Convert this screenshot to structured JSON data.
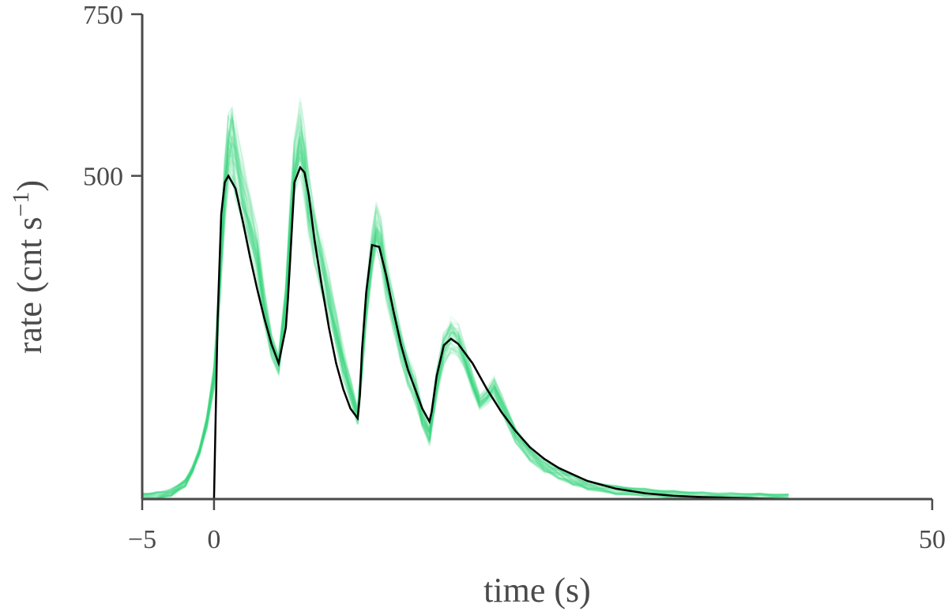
{
  "chart_data": {
    "type": "line",
    "xlabel": "time (s)",
    "ylabel_main": "rate (cnt s",
    "ylabel_sup": "−1",
    "ylabel_close": ")",
    "xlim": [
      -5,
      50
    ],
    "ylim": [
      0,
      750
    ],
    "xticks": [
      {
        "value": -5,
        "label": "−5"
      },
      {
        "value": 0,
        "label": "0"
      },
      {
        "value": 50,
        "label": "50"
      }
    ],
    "yticks": [
      {
        "value": 500,
        "label": "500"
      },
      {
        "value": 750,
        "label": "750"
      }
    ],
    "grid": false,
    "colors": {
      "band": "#3ddc84",
      "model": "#000000",
      "axis": "#4a4a4a"
    },
    "series": [
      {
        "role": "model",
        "x": [
          0,
          0.25,
          0.5,
          0.75,
          1.0,
          1.5,
          2.0,
          2.5,
          3.0,
          3.5,
          4.0,
          4.5,
          5.0,
          5.15,
          5.3,
          5.6,
          6.0,
          6.3,
          6.6,
          7.0,
          7.5,
          8.0,
          8.5,
          9.0,
          9.5,
          10.0,
          10.15,
          10.3,
          10.6,
          11.0,
          11.5,
          12.0,
          12.5,
          13.0,
          13.5,
          14.0,
          14.5,
          15.0,
          15.15,
          15.5,
          16.0,
          16.5,
          17.0,
          18.0,
          19.0,
          20.0,
          21.0,
          22.0,
          23.0,
          24.0,
          26.0,
          28.0,
          30.0,
          32.0,
          34.0,
          36.0,
          38.0,
          40.0
        ],
        "y": [
          0,
          280,
          440,
          490,
          500,
          480,
          430,
          375,
          325,
          280,
          240,
          210,
          265,
          310,
          370,
          490,
          513,
          505,
          470,
          400,
          330,
          265,
          210,
          170,
          140,
          125,
          160,
          230,
          320,
          393,
          390,
          345,
          290,
          240,
          200,
          170,
          140,
          120,
          135,
          190,
          238,
          248,
          240,
          210,
          170,
          135,
          105,
          80,
          62,
          48,
          28,
          16,
          9,
          5,
          3,
          2,
          1,
          0
        ]
      },
      {
        "role": "posterior-samples",
        "x": [
          -5,
          -4,
          -3,
          -2,
          -1.5,
          -1,
          -0.5,
          0,
          0.25,
          0.5,
          0.75,
          1.0,
          1.25,
          1.5,
          2.0,
          2.5,
          3.0,
          3.5,
          4.0,
          4.5,
          5.0,
          5.3,
          5.6,
          6.0,
          6.3,
          6.6,
          7.0,
          7.5,
          8.0,
          8.5,
          9.0,
          9.5,
          10.0,
          10.3,
          10.6,
          11.0,
          11.3,
          11.6,
          12.0,
          12.5,
          13.0,
          13.5,
          14.0,
          14.5,
          15.0,
          15.5,
          16.0,
          16.5,
          17.0,
          17.5,
          18.0,
          18.5,
          19.0,
          19.5,
          20.0,
          21.0,
          22.0,
          23.0,
          24.0,
          25.0,
          26.0,
          28.0,
          30.0,
          32.0,
          34.0,
          36.0,
          38.0,
          40.0
        ],
        "y": [
          3,
          5,
          10,
          25,
          45,
          75,
          120,
          190,
          270,
          380,
          480,
          545,
          560,
          525,
          470,
          425,
          380,
          300,
          240,
          210,
          310,
          420,
          510,
          560,
          520,
          460,
          410,
          360,
          310,
          260,
          210,
          170,
          130,
          210,
          300,
          380,
          420,
          400,
          340,
          290,
          240,
          200,
          170,
          125,
          100,
          180,
          235,
          255,
          245,
          215,
          180,
          150,
          160,
          175,
          150,
          100,
          70,
          50,
          40,
          30,
          22,
          14,
          10,
          7,
          5,
          4,
          3,
          2
        ]
      }
    ]
  }
}
